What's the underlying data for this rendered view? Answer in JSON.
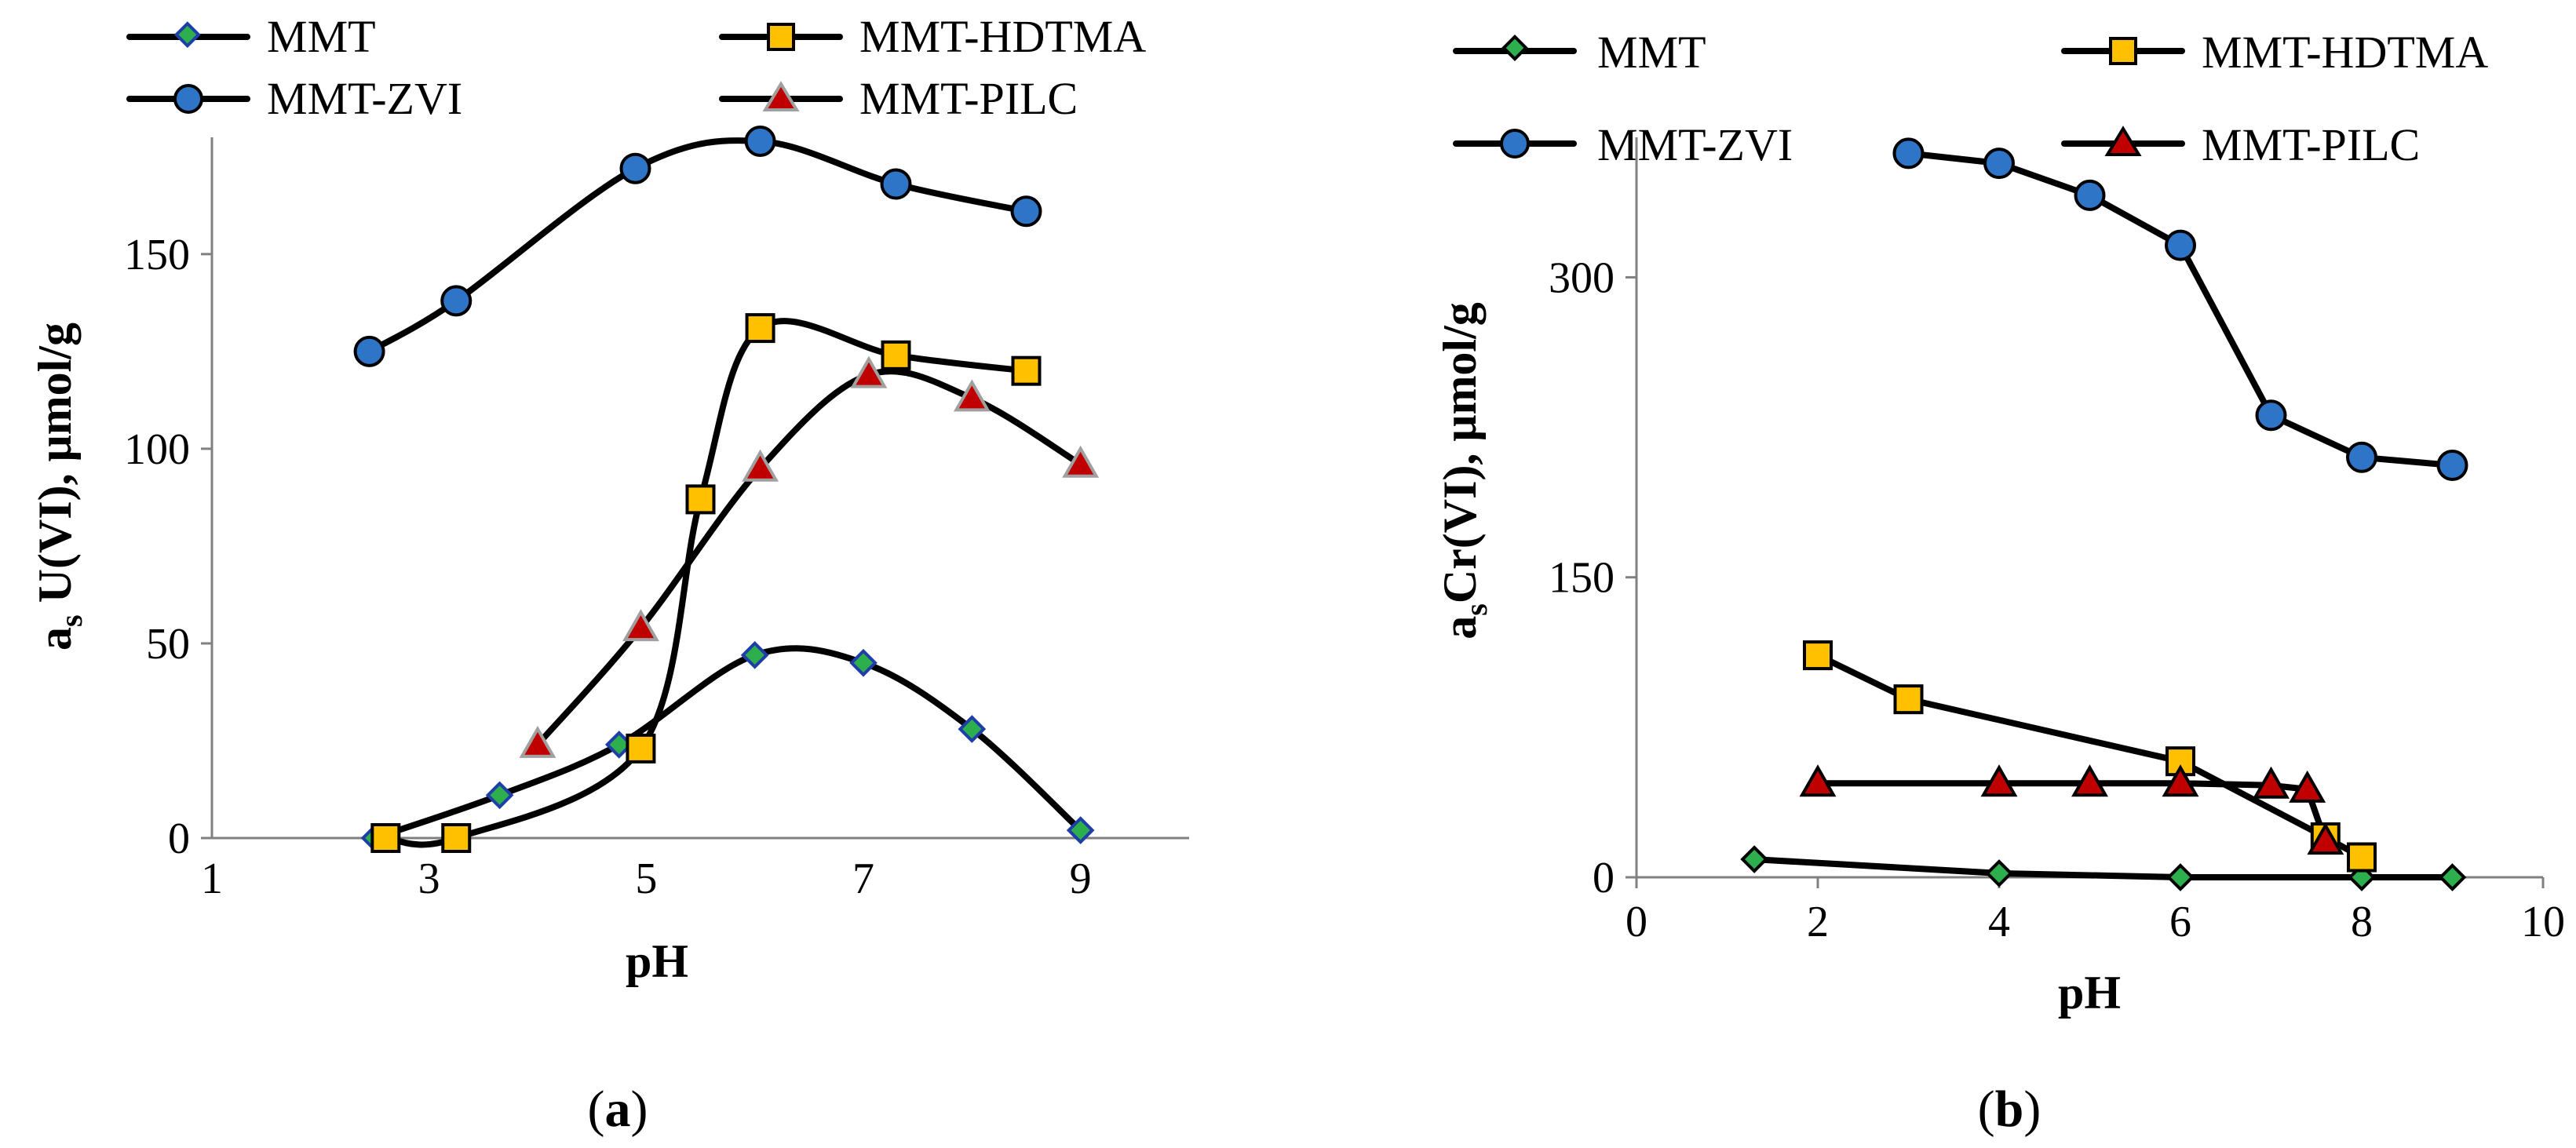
{
  "colors": {
    "MMT": "#2eaf4e",
    "MMT-HDTMA": "#ffc000",
    "MMT-ZVI": "#2e75c8",
    "MMT-PILC": "#c00000",
    "line": "#000000",
    "axis": "#808080"
  },
  "chart_data": [
    {
      "panel_label": {
        "open": "(",
        "letter": "a",
        "close": ")"
      },
      "type": "line",
      "smooth": true,
      "xlabel": "pH",
      "ylabel": {
        "prefix": "a",
        "subscript": "s",
        "rest": " U(VI), μmol/g"
      },
      "xlim": [
        1,
        10
      ],
      "ylim": [
        0,
        180
      ],
      "xticks": [
        "1",
        "3",
        "5",
        "7",
        "9"
      ],
      "yticks": [
        "0",
        "50",
        "100",
        "150"
      ],
      "legend": [
        "MMT",
        "MMT-HDTMA",
        "MMT-ZVI",
        "MMT-PILC"
      ],
      "series": [
        {
          "name": "MMT",
          "marker": "diamond",
          "x": [
            2.5,
            3.65,
            4.75,
            6.0,
            7.0,
            8.0,
            9.0
          ],
          "y": [
            0,
            11,
            24,
            47,
            45,
            28,
            2
          ]
        },
        {
          "name": "MMT-HDTMA",
          "marker": "square",
          "x": [
            2.6,
            3.25,
            4.95,
            5.5,
            6.05,
            7.3,
            8.5
          ],
          "y": [
            0,
            0,
            23,
            87,
            131,
            124,
            120
          ]
        },
        {
          "name": "MMT-ZVI",
          "marker": "circle",
          "x": [
            2.45,
            3.25,
            4.9,
            6.05,
            7.3,
            8.5
          ],
          "y": [
            125,
            138,
            172,
            179,
            168,
            161
          ]
        },
        {
          "name": "MMT-PILC",
          "marker": "triangle",
          "x": [
            4.0,
            4.95,
            6.05,
            7.05,
            8.0,
            9.0
          ],
          "y": [
            24,
            54,
            95,
            119,
            113,
            96
          ]
        }
      ]
    },
    {
      "panel_label": {
        "open": "(",
        "letter": "b",
        "close": ")"
      },
      "type": "line",
      "smooth": false,
      "xlabel": "pH",
      "ylabel": {
        "prefix": "a",
        "subscript": "s",
        "rest": "Cr(VI),  μmol/g"
      },
      "xlim": [
        0,
        10
      ],
      "ylim": [
        0,
        370
      ],
      "xticks": [
        "0",
        "2",
        "4",
        "6",
        "8",
        "10"
      ],
      "yticks": [
        "0",
        "150",
        "300"
      ],
      "legend": [
        "MMT",
        "MMT-HDTMA",
        "MMT-ZVI",
        "MMT-PILC"
      ],
      "series": [
        {
          "name": "MMT",
          "marker": "diamond",
          "x": [
            1.3,
            4.0,
            6.0,
            8.0,
            9.0
          ],
          "y": [
            9,
            2,
            0,
            0,
            0
          ]
        },
        {
          "name": "MMT-HDTMA",
          "marker": "square",
          "x": [
            2.0,
            3.0,
            6.0,
            7.6,
            8.0
          ],
          "y": [
            111,
            89,
            58,
            20,
            10
          ]
        },
        {
          "name": "MMT-ZVI",
          "marker": "circle",
          "x": [
            3.0,
            4.0,
            5.0,
            6.0,
            7.0,
            8.0,
            9.0
          ],
          "y": [
            362,
            357,
            341,
            316,
            231,
            210,
            206
          ]
        },
        {
          "name": "MMT-PILC",
          "marker": "triangle",
          "x": [
            2.0,
            4.0,
            5.0,
            6.0,
            7.0,
            7.4,
            7.6
          ],
          "y": [
            47,
            47,
            47,
            47,
            46,
            44,
            18
          ]
        }
      ]
    }
  ]
}
